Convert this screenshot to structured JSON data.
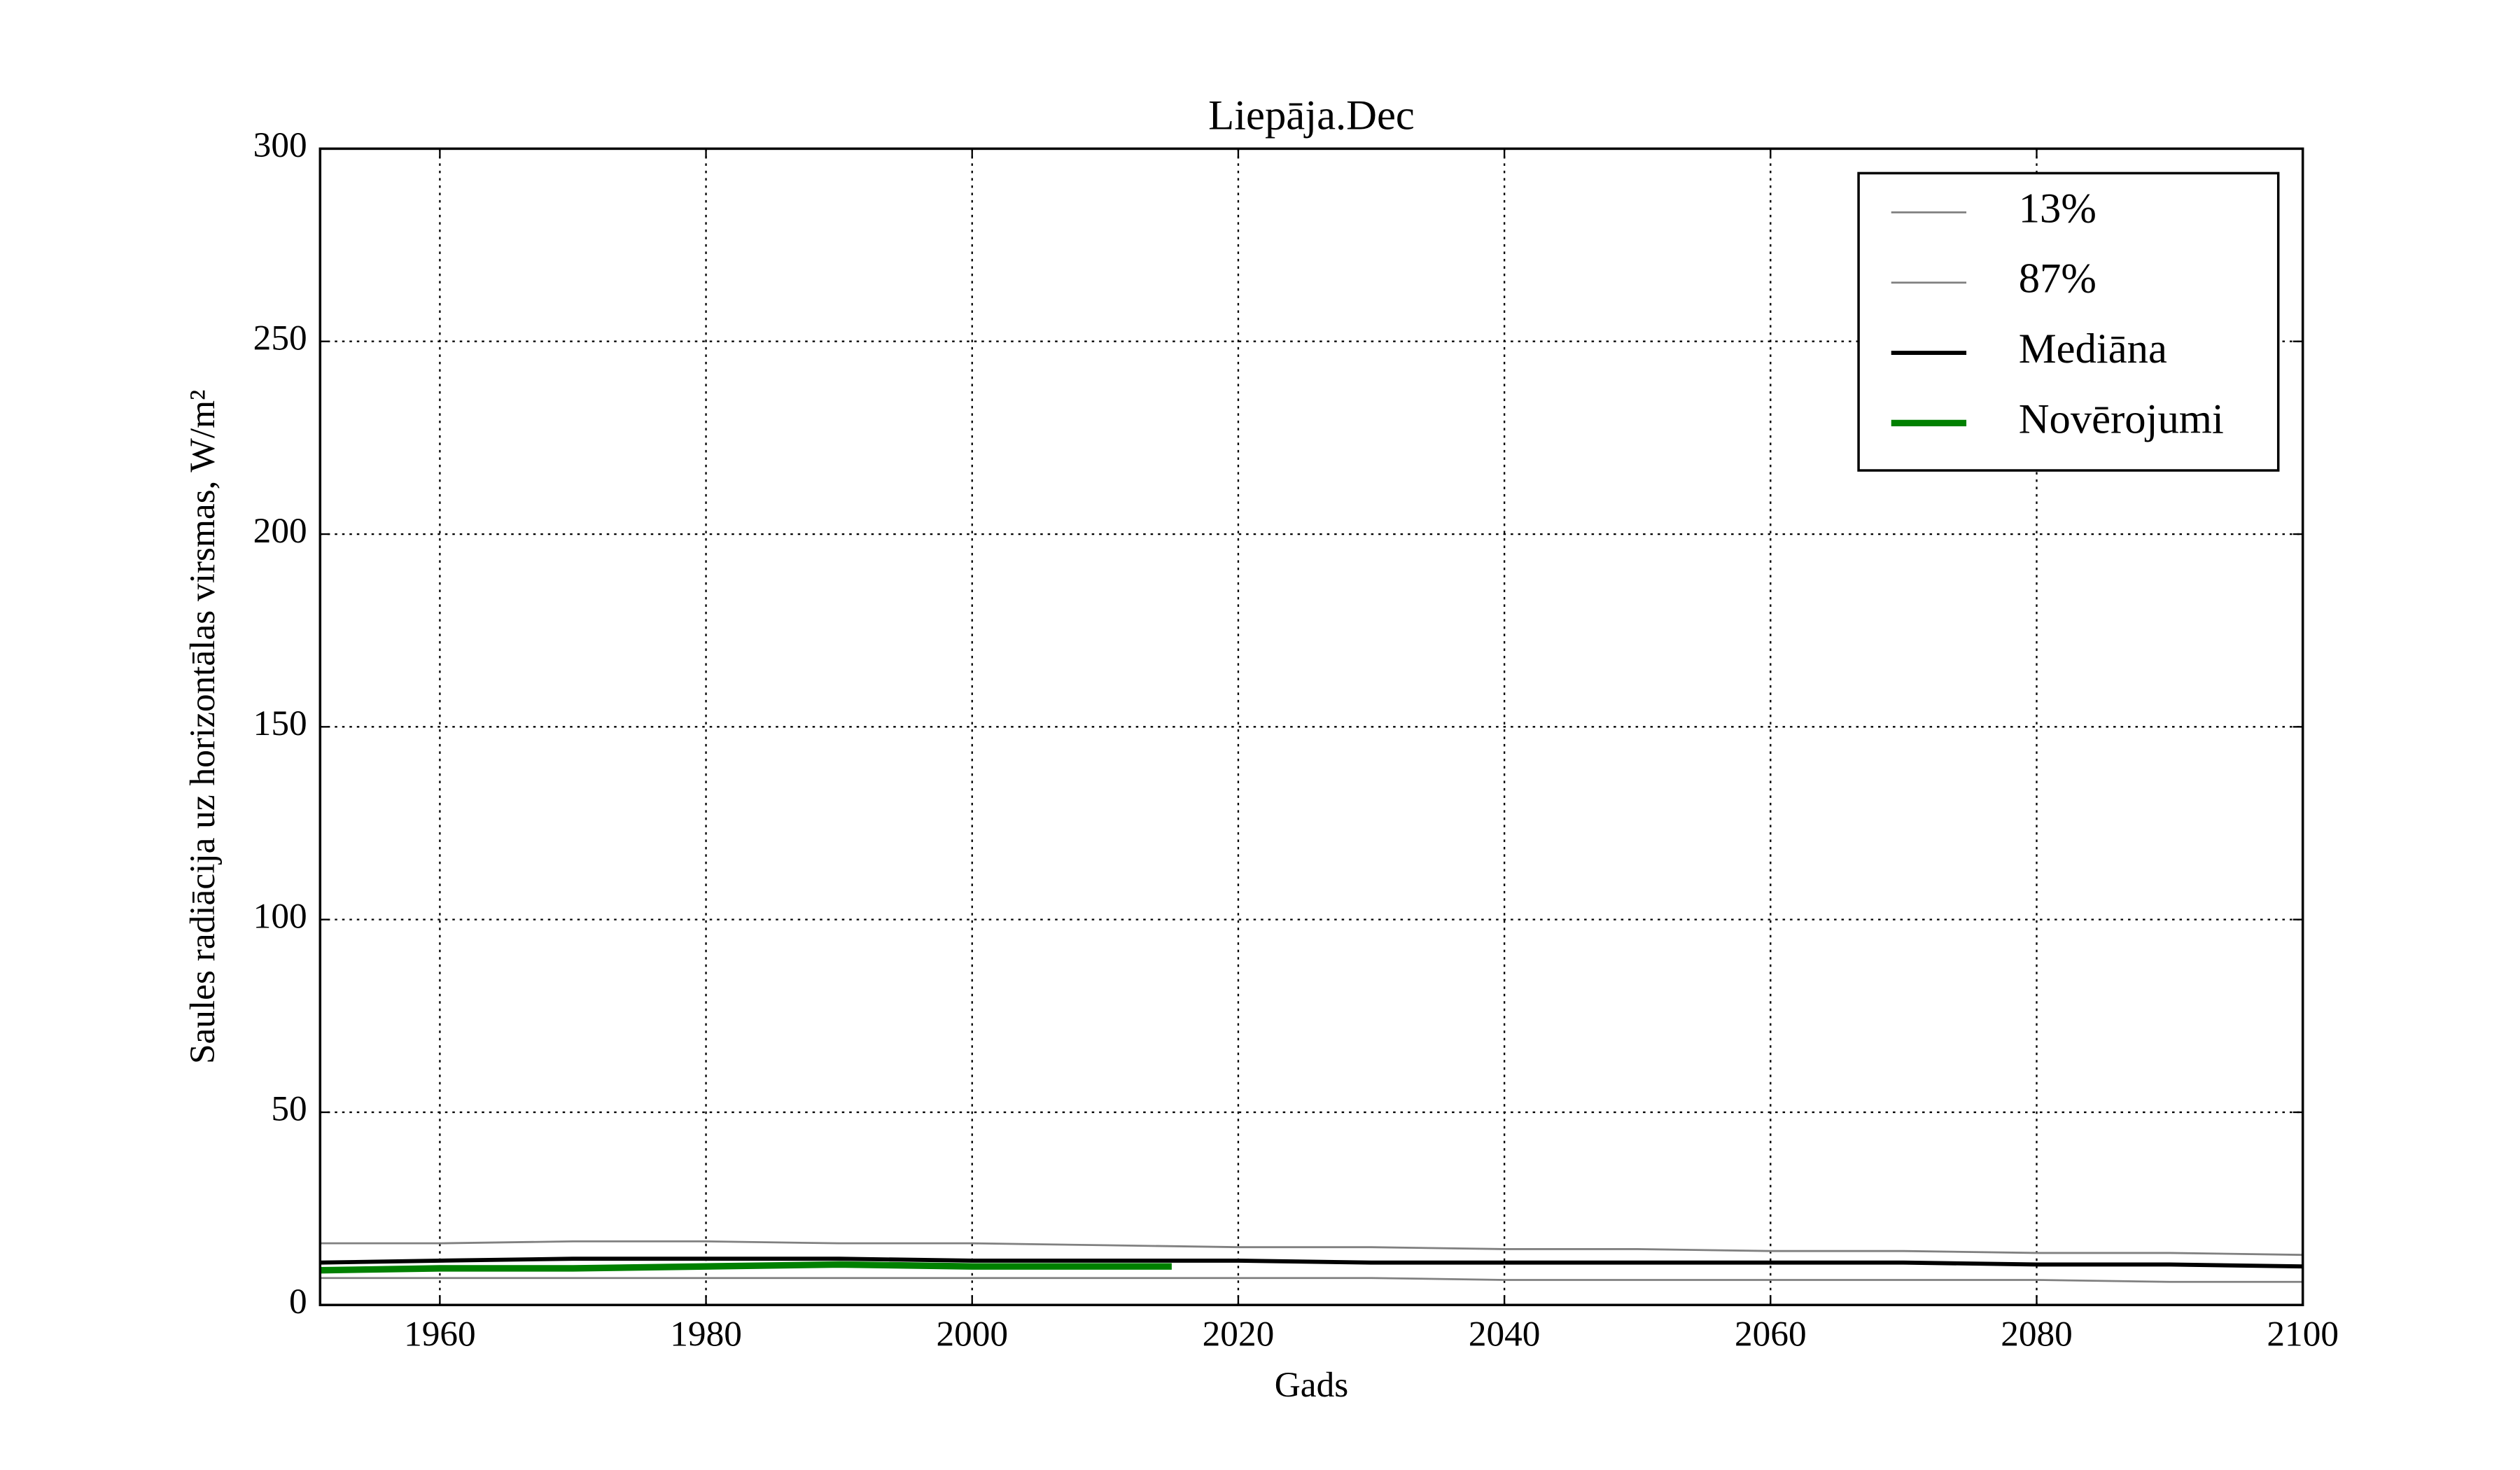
{
  "chart_data": {
    "type": "line",
    "title": "Liepāja.Dec",
    "x_label": "Gads",
    "y_label": "Saules radiācija uz horizontālas virsmas, W/m²",
    "x": [
      1951,
      1960,
      1970,
      1980,
      1990,
      2000,
      2010,
      2020,
      2030,
      2040,
      2050,
      2060,
      2070,
      2080,
      2090,
      2100
    ],
    "series": [
      {
        "name": "13%",
        "color": "#808080",
        "values": [
          7,
          7,
          7,
          7,
          7,
          7,
          7,
          7,
          7,
          6.5,
          6.5,
          6.5,
          6.5,
          6.5,
          6,
          6
        ]
      },
      {
        "name": "87%",
        "color": "#808080",
        "values": [
          16,
          16,
          16.5,
          16.5,
          16,
          16,
          15.5,
          15,
          15,
          14.5,
          14.5,
          14,
          14,
          13.5,
          13.5,
          13
        ]
      },
      {
        "name": "Mediāna",
        "color": "#000000",
        "values": [
          11,
          11.5,
          12,
          12,
          12,
          11.5,
          11.5,
          11.5,
          11,
          11,
          11,
          11,
          11,
          10.5,
          10.5,
          10
        ]
      },
      {
        "name": "Novērojumi",
        "color": "#008000",
        "x": [
          1951,
          1960,
          1970,
          1980,
          1990,
          2000,
          2010,
          2015
        ],
        "values": [
          9,
          9.5,
          9.5,
          10,
          10.5,
          10,
          10,
          10
        ]
      }
    ],
    "xlim": [
      1951,
      2100
    ],
    "xticks": [
      1960,
      1980,
      2000,
      2020,
      2040,
      2060,
      2080,
      2100
    ],
    "ylim": [
      0,
      300
    ],
    "yticks": [
      0,
      50,
      100,
      150,
      200,
      250,
      300
    ],
    "grid": true,
    "legend": "upper right"
  }
}
